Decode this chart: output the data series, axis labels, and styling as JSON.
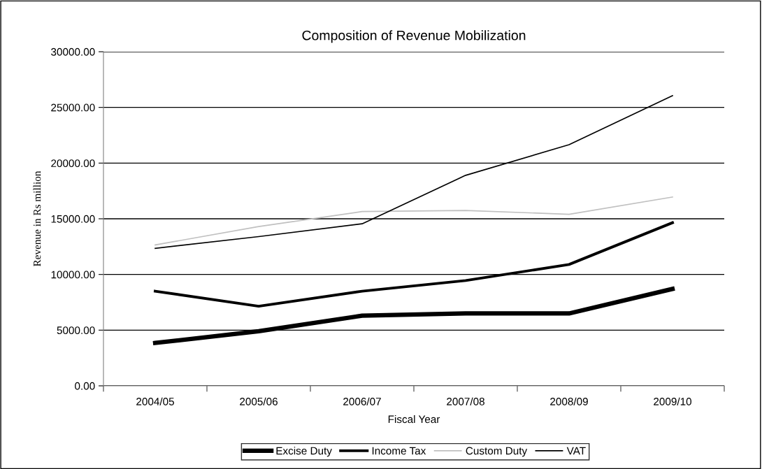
{
  "chart_data": {
    "type": "line",
    "title": "Composition of Revenue Mobilization",
    "xlabel": "Fiscal Year",
    "ylabel": "Revenue in Rs million",
    "categories": [
      "2004/05",
      "2005/06",
      "2006/07",
      "2007/08",
      "2008/09",
      "2009/10"
    ],
    "series": [
      {
        "name": "Excise Duty",
        "color": "#000000",
        "values": [
          3850,
          4900,
          6300,
          6500,
          6500,
          8700
        ]
      },
      {
        "name": "Income Tax",
        "color": "#000000",
        "values": [
          8500,
          7150,
          8500,
          9450,
          10900,
          14650
        ]
      },
      {
        "name": "Custom Duty",
        "color": "#c0c0c0",
        "values": [
          12650,
          14300,
          15650,
          15750,
          15400,
          16950
        ]
      },
      {
        "name": "VAT",
        "color": "#000000",
        "values": [
          12350,
          13400,
          14550,
          18900,
          21650,
          26050
        ]
      }
    ],
    "ylim": [
      0,
      30000
    ],
    "yticks": [
      {
        "value": 0,
        "label": "0.00"
      },
      {
        "value": 5000,
        "label": "5000.00"
      },
      {
        "value": 10000,
        "label": "10000.00"
      },
      {
        "value": 15000,
        "label": "15000.00"
      },
      {
        "value": 20000,
        "label": "20000.00"
      },
      {
        "value": 25000,
        "label": "25000.00"
      },
      {
        "value": 30000,
        "label": "30000.00"
      }
    ],
    "grid": "y",
    "legend": "bottom",
    "marker": "none",
    "line_style": "solid"
  }
}
